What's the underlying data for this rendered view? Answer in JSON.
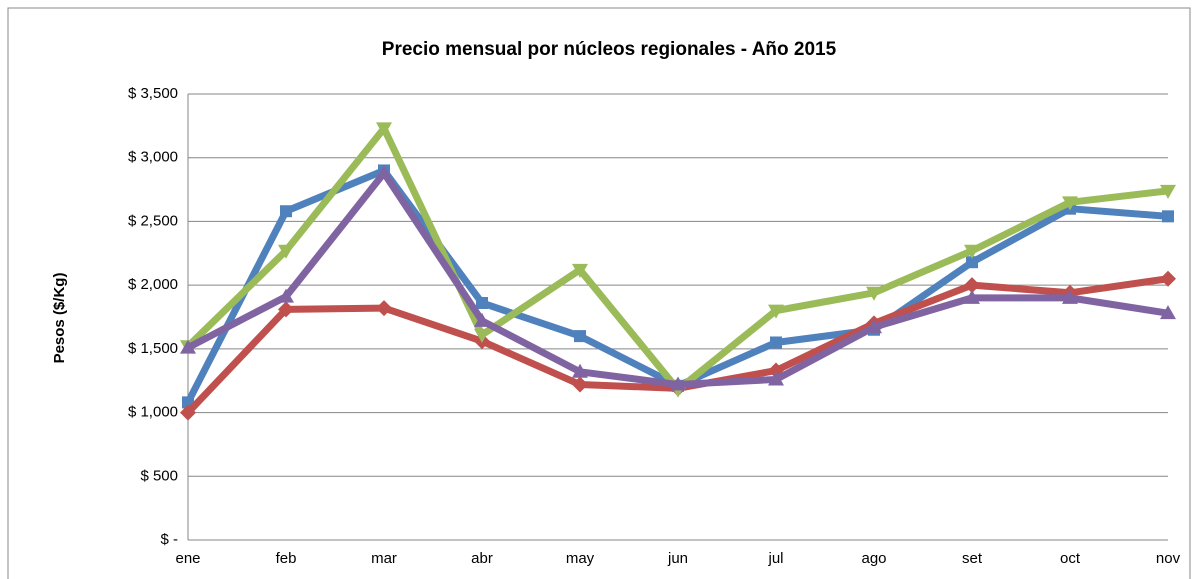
{
  "chart_data": {
    "type": "line",
    "title": "Precio mensual por núcleos regionales -  Año 2015",
    "y_label": "Pesos ($/Kg)",
    "categories": [
      "ene",
      "feb",
      "mar",
      "abr",
      "may",
      "jun",
      "jul",
      "ago",
      "set",
      "oct",
      "nov"
    ],
    "series": [
      {
        "color": "#4f81bd",
        "marker": "square",
        "values": [
          1080,
          2580,
          2900,
          1860,
          1600,
          1210,
          1550,
          1650,
          2180,
          2600,
          2540
        ]
      },
      {
        "color": "#c0504d",
        "marker": "diamond",
        "values": [
          1000,
          1810,
          1820,
          1560,
          1220,
          1190,
          1330,
          1700,
          2000,
          1940,
          2050
        ]
      },
      {
        "color": "#9bbb59",
        "marker": "triangle-down",
        "values": [
          1520,
          2270,
          3230,
          1610,
          2120,
          1180,
          1800,
          1940,
          2270,
          2650,
          2740
        ]
      },
      {
        "color": "#8064a2",
        "marker": "triangle-up",
        "values": [
          1510,
          1910,
          2880,
          1720,
          1320,
          1220,
          1260,
          1670,
          1900,
          1900,
          1780
        ]
      }
    ],
    "ylim": [
      0,
      3500
    ],
    "yticks": [
      {
        "value": 0,
        "label": "$ -"
      },
      {
        "value": 500,
        "label": "$ 500"
      },
      {
        "value": 1000,
        "label": "$ 1,000"
      },
      {
        "value": 1500,
        "label": "$ 1,500"
      },
      {
        "value": 2000,
        "label": "$ 2,000"
      },
      {
        "value": 2500,
        "label": "$ 2,500"
      },
      {
        "value": 3000,
        "label": "$ 3,000"
      },
      {
        "value": 3500,
        "label": "$ 3,500"
      }
    ],
    "grid": true
  }
}
